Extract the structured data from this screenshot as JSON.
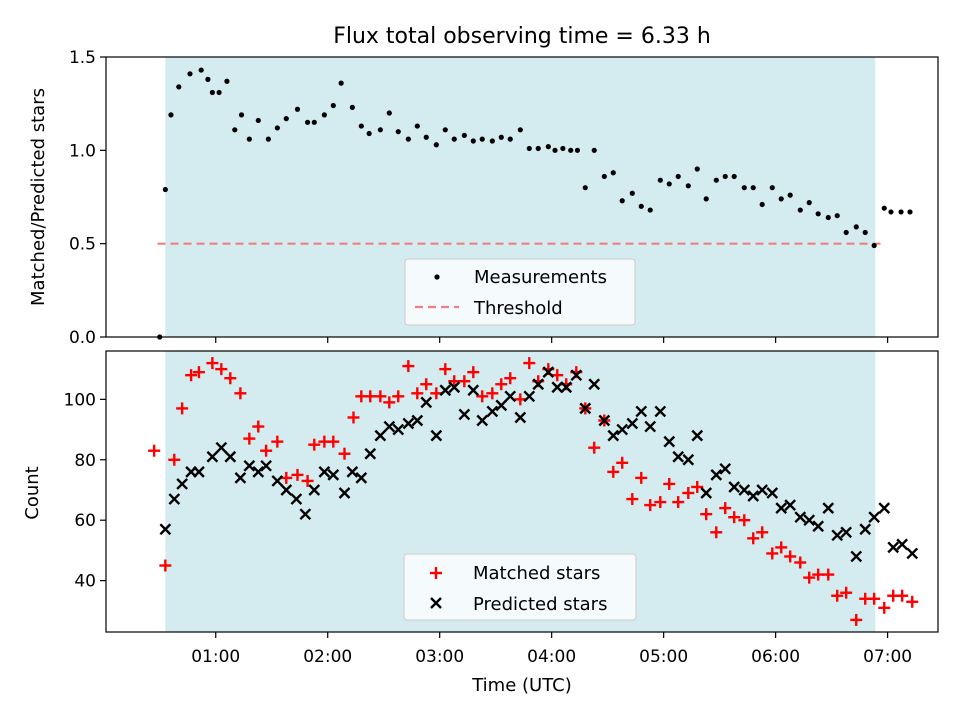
{
  "chart_data": {
    "title": "Flux total observing time = 6.33 h",
    "xlabel": "Time (UTC)",
    "x_ticks": [
      "01:00",
      "02:00",
      "03:00",
      "04:00",
      "05:00",
      "06:00",
      "07:00"
    ],
    "x_tick_hours": [
      1,
      2,
      3,
      4,
      5,
      6,
      7
    ],
    "xlim_hours": [
      0.02,
      7.45
    ],
    "observing_window_hours": [
      0.55,
      6.89
    ],
    "span_color": "#d4ebf0",
    "panels": [
      {
        "type": "scatter",
        "ylabel": "Matched/Predicted stars",
        "ylim": [
          0,
          1.5
        ],
        "y_ticks": [
          "0.0",
          "0.5",
          "1.0",
          "1.5"
        ],
        "y_tick_values": [
          0,
          0.5,
          1.0,
          1.5
        ],
        "legend": [
          "Measurements",
          "Threshold"
        ],
        "legend_placement": "bottom-center",
        "threshold": {
          "name": "Threshold",
          "value": 0.5,
          "x": [
            0.48,
            6.97
          ],
          "color": "#f08080"
        },
        "series": [
          {
            "name": "Measurements",
            "color": "#000000",
            "marker": "dot",
            "x": [
              0.5,
              0.55,
              0.6,
              0.67,
              0.77,
              0.87,
              0.93,
              0.97,
              1.03,
              1.1,
              1.17,
              1.23,
              1.3,
              1.38,
              1.47,
              1.55,
              1.63,
              1.73,
              1.82,
              1.88,
              1.97,
              2.05,
              2.12,
              2.22,
              2.3,
              2.37,
              2.47,
              2.55,
              2.63,
              2.72,
              2.8,
              2.88,
              2.97,
              3.05,
              3.13,
              3.22,
              3.3,
              3.38,
              3.47,
              3.55,
              3.63,
              3.72,
              3.8,
              3.88,
              3.97,
              4.03,
              4.1,
              4.17,
              4.23,
              4.3,
              4.38,
              4.47,
              4.55,
              4.63,
              4.72,
              4.8,
              4.88,
              4.97,
              5.05,
              5.13,
              5.22,
              5.3,
              5.38,
              5.47,
              5.55,
              5.63,
              5.72,
              5.8,
              5.88,
              5.97,
              6.05,
              6.13,
              6.22,
              6.3,
              6.38,
              6.47,
              6.55,
              6.63,
              6.72,
              6.8,
              6.88,
              6.97,
              7.03,
              7.12,
              7.2
            ],
            "y": [
              0.0,
              0.79,
              1.19,
              1.34,
              1.41,
              1.43,
              1.38,
              1.31,
              1.31,
              1.37,
              1.11,
              1.19,
              1.06,
              1.16,
              1.06,
              1.12,
              1.17,
              1.22,
              1.15,
              1.15,
              1.19,
              1.24,
              1.36,
              1.23,
              1.13,
              1.09,
              1.11,
              1.2,
              1.1,
              1.06,
              1.13,
              1.07,
              1.03,
              1.11,
              1.06,
              1.08,
              1.05,
              1.06,
              1.05,
              1.07,
              1.06,
              1.11,
              1.01,
              1.01,
              1.02,
              1.0,
              1.01,
              1.0,
              1.0,
              0.8,
              1.0,
              0.86,
              0.88,
              0.73,
              0.77,
              0.7,
              0.68,
              0.84,
              0.82,
              0.86,
              0.81,
              0.9,
              0.74,
              0.84,
              0.86,
              0.86,
              0.8,
              0.8,
              0.71,
              0.8,
              0.74,
              0.76,
              0.68,
              0.72,
              0.66,
              0.64,
              0.65,
              0.56,
              0.59,
              0.56,
              0.49,
              0.69,
              0.67,
              0.67,
              0.67
            ]
          }
        ]
      },
      {
        "type": "scatter",
        "ylabel": "Count",
        "ylim": [
          23,
          116
        ],
        "y_ticks": [
          "40",
          "60",
          "80",
          "100"
        ],
        "y_tick_values": [
          40,
          60,
          80,
          100
        ],
        "legend": [
          "Matched stars",
          "Predicted stars"
        ],
        "legend_placement": "bottom-center",
        "series": [
          {
            "name": "Matched stars",
            "color": "#ff0000",
            "marker": "plus",
            "x": [
              0.45,
              0.55,
              0.63,
              0.7,
              0.78,
              0.85,
              0.97,
              1.05,
              1.13,
              1.22,
              1.3,
              1.38,
              1.45,
              1.55,
              1.63,
              1.73,
              1.82,
              1.88,
              1.97,
              2.05,
              2.15,
              2.23,
              2.3,
              2.38,
              2.47,
              2.55,
              2.63,
              2.72,
              2.8,
              2.88,
              2.97,
              3.05,
              3.13,
              3.22,
              3.3,
              3.38,
              3.47,
              3.55,
              3.63,
              3.72,
              3.8,
              3.88,
              3.97,
              4.05,
              4.13,
              4.22,
              4.3,
              4.38,
              4.47,
              4.55,
              4.63,
              4.72,
              4.8,
              4.88,
              4.97,
              5.05,
              5.13,
              5.22,
              5.3,
              5.38,
              5.47,
              5.55,
              5.63,
              5.72,
              5.8,
              5.88,
              5.97,
              6.05,
              6.13,
              6.22,
              6.3,
              6.38,
              6.47,
              6.55,
              6.63,
              6.72,
              6.8,
              6.88,
              6.97,
              7.05,
              7.13,
              7.22
            ],
            "y": [
              83,
              45,
              80,
              97,
              108,
              109,
              112,
              110,
              107,
              102,
              87,
              91,
              83,
              86,
              74,
              75,
              73,
              85,
              86,
              86,
              82,
              94,
              101,
              101,
              101,
              99,
              101,
              111,
              102,
              105,
              102,
              110,
              106,
              106,
              109,
              101,
              102,
              105,
              107,
              100,
              112,
              106,
              110,
              108,
              105,
              109,
              97,
              84,
              93,
              76,
              79,
              67,
              74,
              65,
              66,
              72,
              66,
              69,
              71,
              62,
              56,
              64,
              61,
              60,
              54,
              56,
              49,
              51,
              48,
              46,
              41,
              42,
              42,
              35,
              36,
              27,
              34,
              34,
              31,
              35,
              35,
              33
            ]
          },
          {
            "name": "Predicted stars",
            "color": "#000000",
            "marker": "x",
            "x": [
              0.55,
              0.63,
              0.7,
              0.78,
              0.85,
              0.97,
              1.05,
              1.13,
              1.22,
              1.3,
              1.38,
              1.45,
              1.55,
              1.63,
              1.72,
              1.8,
              1.88,
              1.97,
              2.05,
              2.15,
              2.22,
              2.3,
              2.38,
              2.47,
              2.55,
              2.63,
              2.72,
              2.8,
              2.88,
              2.97,
              3.05,
              3.13,
              3.22,
              3.3,
              3.38,
              3.47,
              3.55,
              3.63,
              3.72,
              3.8,
              3.88,
              3.97,
              4.05,
              4.13,
              4.22,
              4.3,
              4.38,
              4.47,
              4.55,
              4.63,
              4.72,
              4.8,
              4.88,
              4.97,
              5.05,
              5.13,
              5.22,
              5.3,
              5.38,
              5.47,
              5.55,
              5.63,
              5.72,
              5.8,
              5.88,
              5.97,
              6.05,
              6.13,
              6.22,
              6.3,
              6.38,
              6.47,
              6.55,
              6.63,
              6.72,
              6.8,
              6.88,
              6.97,
              7.05,
              7.13,
              7.22
            ],
            "y": [
              57,
              67,
              72,
              76,
              76,
              81,
              84,
              81,
              74,
              78,
              76,
              78,
              73,
              70,
              67,
              62,
              70,
              76,
              75,
              69,
              76,
              74,
              82,
              88,
              91,
              90,
              92,
              93,
              99,
              88,
              103,
              104,
              95,
              103,
              93,
              96,
              98,
              101,
              94,
              101,
              105,
              109,
              104,
              104,
              108,
              97,
              105,
              93,
              88,
              90,
              92,
              96,
              91,
              96,
              86,
              81,
              80,
              88,
              69,
              75,
              77,
              71,
              70,
              68,
              70,
              69,
              64,
              65,
              61,
              60,
              58,
              64,
              55,
              56,
              48,
              57,
              61,
              64,
              51,
              52,
              49
            ]
          }
        ]
      }
    ]
  }
}
